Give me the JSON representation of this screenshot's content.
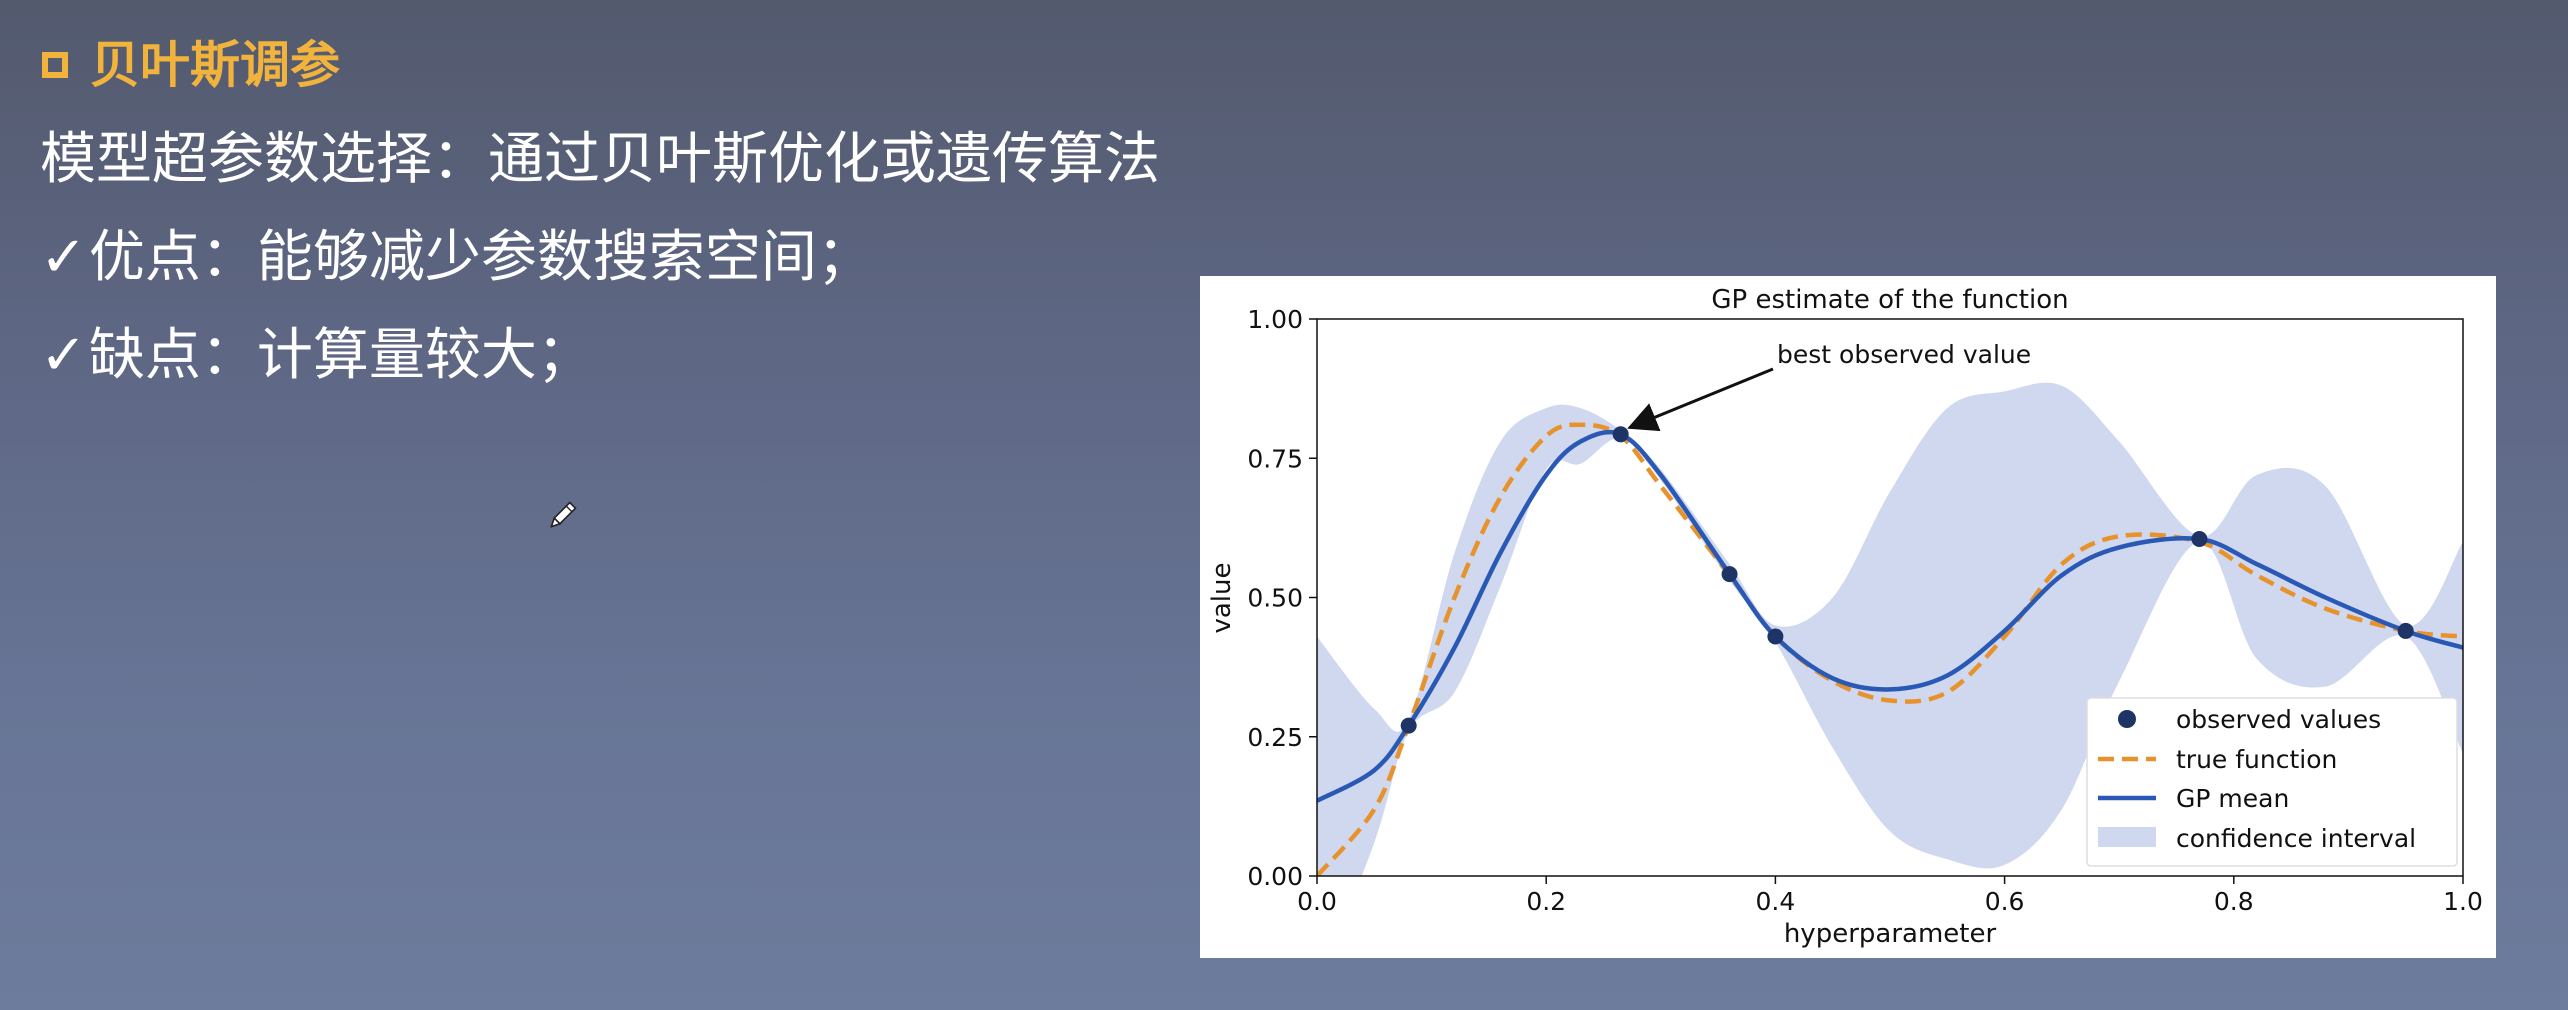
{
  "slide": {
    "heading": "贝叶斯调参",
    "line1": "模型超参数选择：通过贝叶斯优化或遗传算法",
    "line2_check": "✓",
    "line2": "优点：能够减少参数搜索空间；",
    "line3_check": "✓",
    "line3": "缺点：计算量较大；",
    "accent_color": "#f2b33d",
    "cursor_icon": "pencil-icon"
  },
  "chart_data": {
    "type": "line",
    "title": "GP estimate of the function",
    "xlabel": "hyperparameter",
    "ylabel": "value",
    "xlim": [
      0.0,
      1.0
    ],
    "ylim": [
      0.0,
      1.0
    ],
    "xticks": [
      "0.0",
      "0.2",
      "0.4",
      "0.6",
      "0.8",
      "1.0"
    ],
    "yticks": [
      "0.00",
      "0.25",
      "0.50",
      "0.75",
      "1.00"
    ],
    "grid": false,
    "legend_position": "bottom-right",
    "annotation": {
      "text": "best observed value",
      "points_to": [
        0.265,
        0.793
      ]
    },
    "x": [
      0.0,
      0.05,
      0.08,
      0.12,
      0.16,
      0.2,
      0.23,
      0.265,
      0.3,
      0.36,
      0.4,
      0.45,
      0.5,
      0.55,
      0.6,
      0.65,
      0.7,
      0.77,
      0.82,
      0.88,
      0.95,
      1.0
    ],
    "series": [
      {
        "name": "observed values",
        "kind": "points",
        "color": "#1f3466",
        "x": [
          0.08,
          0.265,
          0.36,
          0.4,
          0.77,
          0.95
        ],
        "y": [
          0.27,
          0.793,
          0.542,
          0.43,
          0.605,
          0.44
        ]
      },
      {
        "name": "true function",
        "kind": "dashed",
        "color": "#e8922c",
        "y": [
          0.0,
          0.12,
          0.27,
          0.5,
          0.68,
          0.79,
          0.81,
          0.79,
          0.7,
          0.54,
          0.43,
          0.35,
          0.315,
          0.33,
          0.43,
          0.56,
          0.61,
          0.6,
          0.54,
          0.48,
          0.44,
          0.43
        ]
      },
      {
        "name": "GP mean",
        "kind": "line",
        "color": "#2a59b5",
        "y": [
          0.135,
          0.19,
          0.27,
          0.41,
          0.58,
          0.72,
          0.78,
          0.793,
          0.72,
          0.542,
          0.43,
          0.355,
          0.335,
          0.36,
          0.44,
          0.54,
          0.59,
          0.605,
          0.56,
          0.5,
          0.44,
          0.41
        ]
      },
      {
        "name": "confidence interval",
        "kind": "band",
        "color": "#cfd8ef",
        "upper": [
          0.43,
          0.3,
          0.28,
          0.58,
          0.78,
          0.84,
          0.84,
          0.8,
          0.73,
          0.56,
          0.45,
          0.5,
          0.69,
          0.84,
          0.87,
          0.88,
          0.78,
          0.61,
          0.72,
          0.7,
          0.45,
          0.6
        ],
        "lower": [
          -0.2,
          0.06,
          0.26,
          0.33,
          0.52,
          0.73,
          0.74,
          0.786,
          0.71,
          0.53,
          0.42,
          0.23,
          0.08,
          0.03,
          0.02,
          0.12,
          0.35,
          0.6,
          0.39,
          0.34,
          0.43,
          0.22
        ]
      }
    ]
  }
}
